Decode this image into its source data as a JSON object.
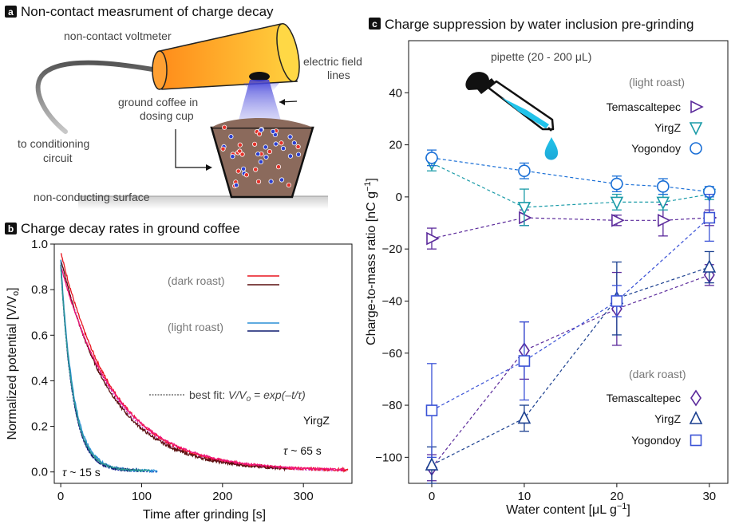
{
  "panel_a": {
    "letter": "a",
    "title": "Non-contact measrument of charge decay",
    "labels": {
      "voltmeter": "non-contact voltmeter",
      "field_1": "electric field",
      "field_2": "lines",
      "coffee_1": "ground coffee in",
      "coffee_2": "dosing cup",
      "cond_1": "to conditioning",
      "cond_2": "circuit",
      "surface": "non-conducting surface"
    }
  },
  "chart_data": [
    {
      "panel": "b",
      "type": "line",
      "title": "Charge decay rates in ground coffee",
      "xlabel": "Time after grinding [s]",
      "ylabel": "Normalized potential [V/V",
      "ylabel_sub": "o",
      "ylabel_end": "]",
      "xlim": [
        -8,
        360
      ],
      "ylim": [
        -0.05,
        1.0
      ],
      "xticks": [
        0,
        100,
        200,
        300
      ],
      "yticks": [
        0.0,
        0.2,
        0.4,
        0.6,
        0.8,
        1.0
      ],
      "legend": {
        "dark_label": "(dark roast)",
        "light_label": "(light roast)",
        "fit_prefix": "best fit: ",
        "fit_formula": "V/V",
        "fit_sub": "o",
        "fit_rest": " = exp(–t/τ)"
      },
      "annotations": {
        "sample": "YirgZ",
        "tau_slow": "~ 65 s",
        "tau_fast": "~ 15 s",
        "tau_symbol": "τ"
      },
      "series": [
        {
          "roast": "dark",
          "color": "#e8141e",
          "tau": 65,
          "amp": 0.96,
          "tmax": 355,
          "noise": 0.006
        },
        {
          "roast": "dark",
          "color": "#5a0f0f",
          "tau": 62,
          "amp": 0.93,
          "tmax": 280,
          "noise": 0.006
        },
        {
          "roast": "dark",
          "color": "#f0147a",
          "tau": 68,
          "amp": 0.9,
          "tmax": 350,
          "noise": 0.004
        },
        {
          "roast": "light",
          "color": "#2a8fd6",
          "tau": 16,
          "amp": 0.92,
          "tmax": 120,
          "noise": 0.006
        },
        {
          "roast": "light",
          "color": "#0d1a6e",
          "tau": 15,
          "amp": 0.91,
          "tmax": 100,
          "noise": 0.006
        },
        {
          "roast": "light",
          "color": "#2e9c94",
          "tau": 15.5,
          "amp": 0.9,
          "tmax": 110,
          "noise": 0.004
        }
      ],
      "fits": [
        {
          "tau": 65,
          "amp": 0.93,
          "tmax": 355,
          "color": "#b419c8"
        },
        {
          "tau": 15,
          "amp": 0.9,
          "tmax": 120,
          "color": "#1a2bb0"
        }
      ]
    },
    {
      "panel": "c",
      "type": "scatter",
      "title": "Charge suppression by water inclusion pre-grinding",
      "xlabel": "Water content [μL g",
      "xlabel_sup": "−1",
      "xlabel_end": "]",
      "ylabel": "Charge-to-mass ratio [nC g",
      "ylabel_sup": "−1",
      "ylabel_end": "]",
      "xlim": [
        -2.5,
        32
      ],
      "ylim": [
        -110,
        60
      ],
      "xticks": [
        0,
        10,
        20,
        30
      ],
      "yticks": [
        -100,
        -80,
        -60,
        -40,
        -20,
        0,
        20,
        40
      ],
      "pipette_label": "pipette (20 - 200 μL)",
      "light_label": "(light roast)",
      "dark_label": "(dark roast)",
      "series": [
        {
          "name": "Temascaltepec",
          "roast": "light",
          "marker": "tri-right",
          "color": "#5b2a9b",
          "x": [
            0,
            10,
            20,
            25,
            30
          ],
          "y": [
            -16,
            -8,
            -9,
            -9,
            -8
          ],
          "err": [
            4,
            3,
            2,
            6,
            3
          ]
        },
        {
          "name": "YirgZ",
          "roast": "light",
          "marker": "tri-down",
          "color": "#1a9ba8",
          "x": [
            0,
            10,
            20,
            25,
            30
          ],
          "y": [
            13,
            -4,
            -2,
            -2,
            1
          ],
          "err": [
            3,
            7,
            3,
            3,
            2
          ]
        },
        {
          "name": "Yogondoy",
          "roast": "light",
          "marker": "circle",
          "color": "#1a6fd6",
          "x": [
            0,
            10,
            20,
            25,
            30
          ],
          "y": [
            15,
            10,
            5,
            4,
            2
          ],
          "err": [
            3,
            3,
            3,
            3,
            2
          ]
        },
        {
          "name": "Temascaltepec",
          "roast": "dark",
          "marker": "diamond",
          "color": "#5b2a9b",
          "x": [
            0,
            10,
            20,
            30
          ],
          "y": [
            -104,
            -59,
            -43,
            -30
          ],
          "err": [
            5,
            11,
            14,
            4
          ]
        },
        {
          "name": "YirgZ",
          "roast": "dark",
          "marker": "tri-up",
          "color": "#1a3f8f",
          "x": [
            0,
            10,
            20,
            30
          ],
          "y": [
            -103,
            -85,
            -39,
            -27
          ],
          "err": [
            7,
            5,
            14,
            6
          ]
        },
        {
          "name": "Yogondoy",
          "roast": "dark",
          "marker": "square",
          "color": "#3a52d6",
          "x": [
            0,
            10,
            20,
            30
          ],
          "y": [
            -82,
            -63,
            -40,
            -8
          ],
          "err": [
            18,
            15,
            6,
            9
          ]
        }
      ]
    }
  ]
}
